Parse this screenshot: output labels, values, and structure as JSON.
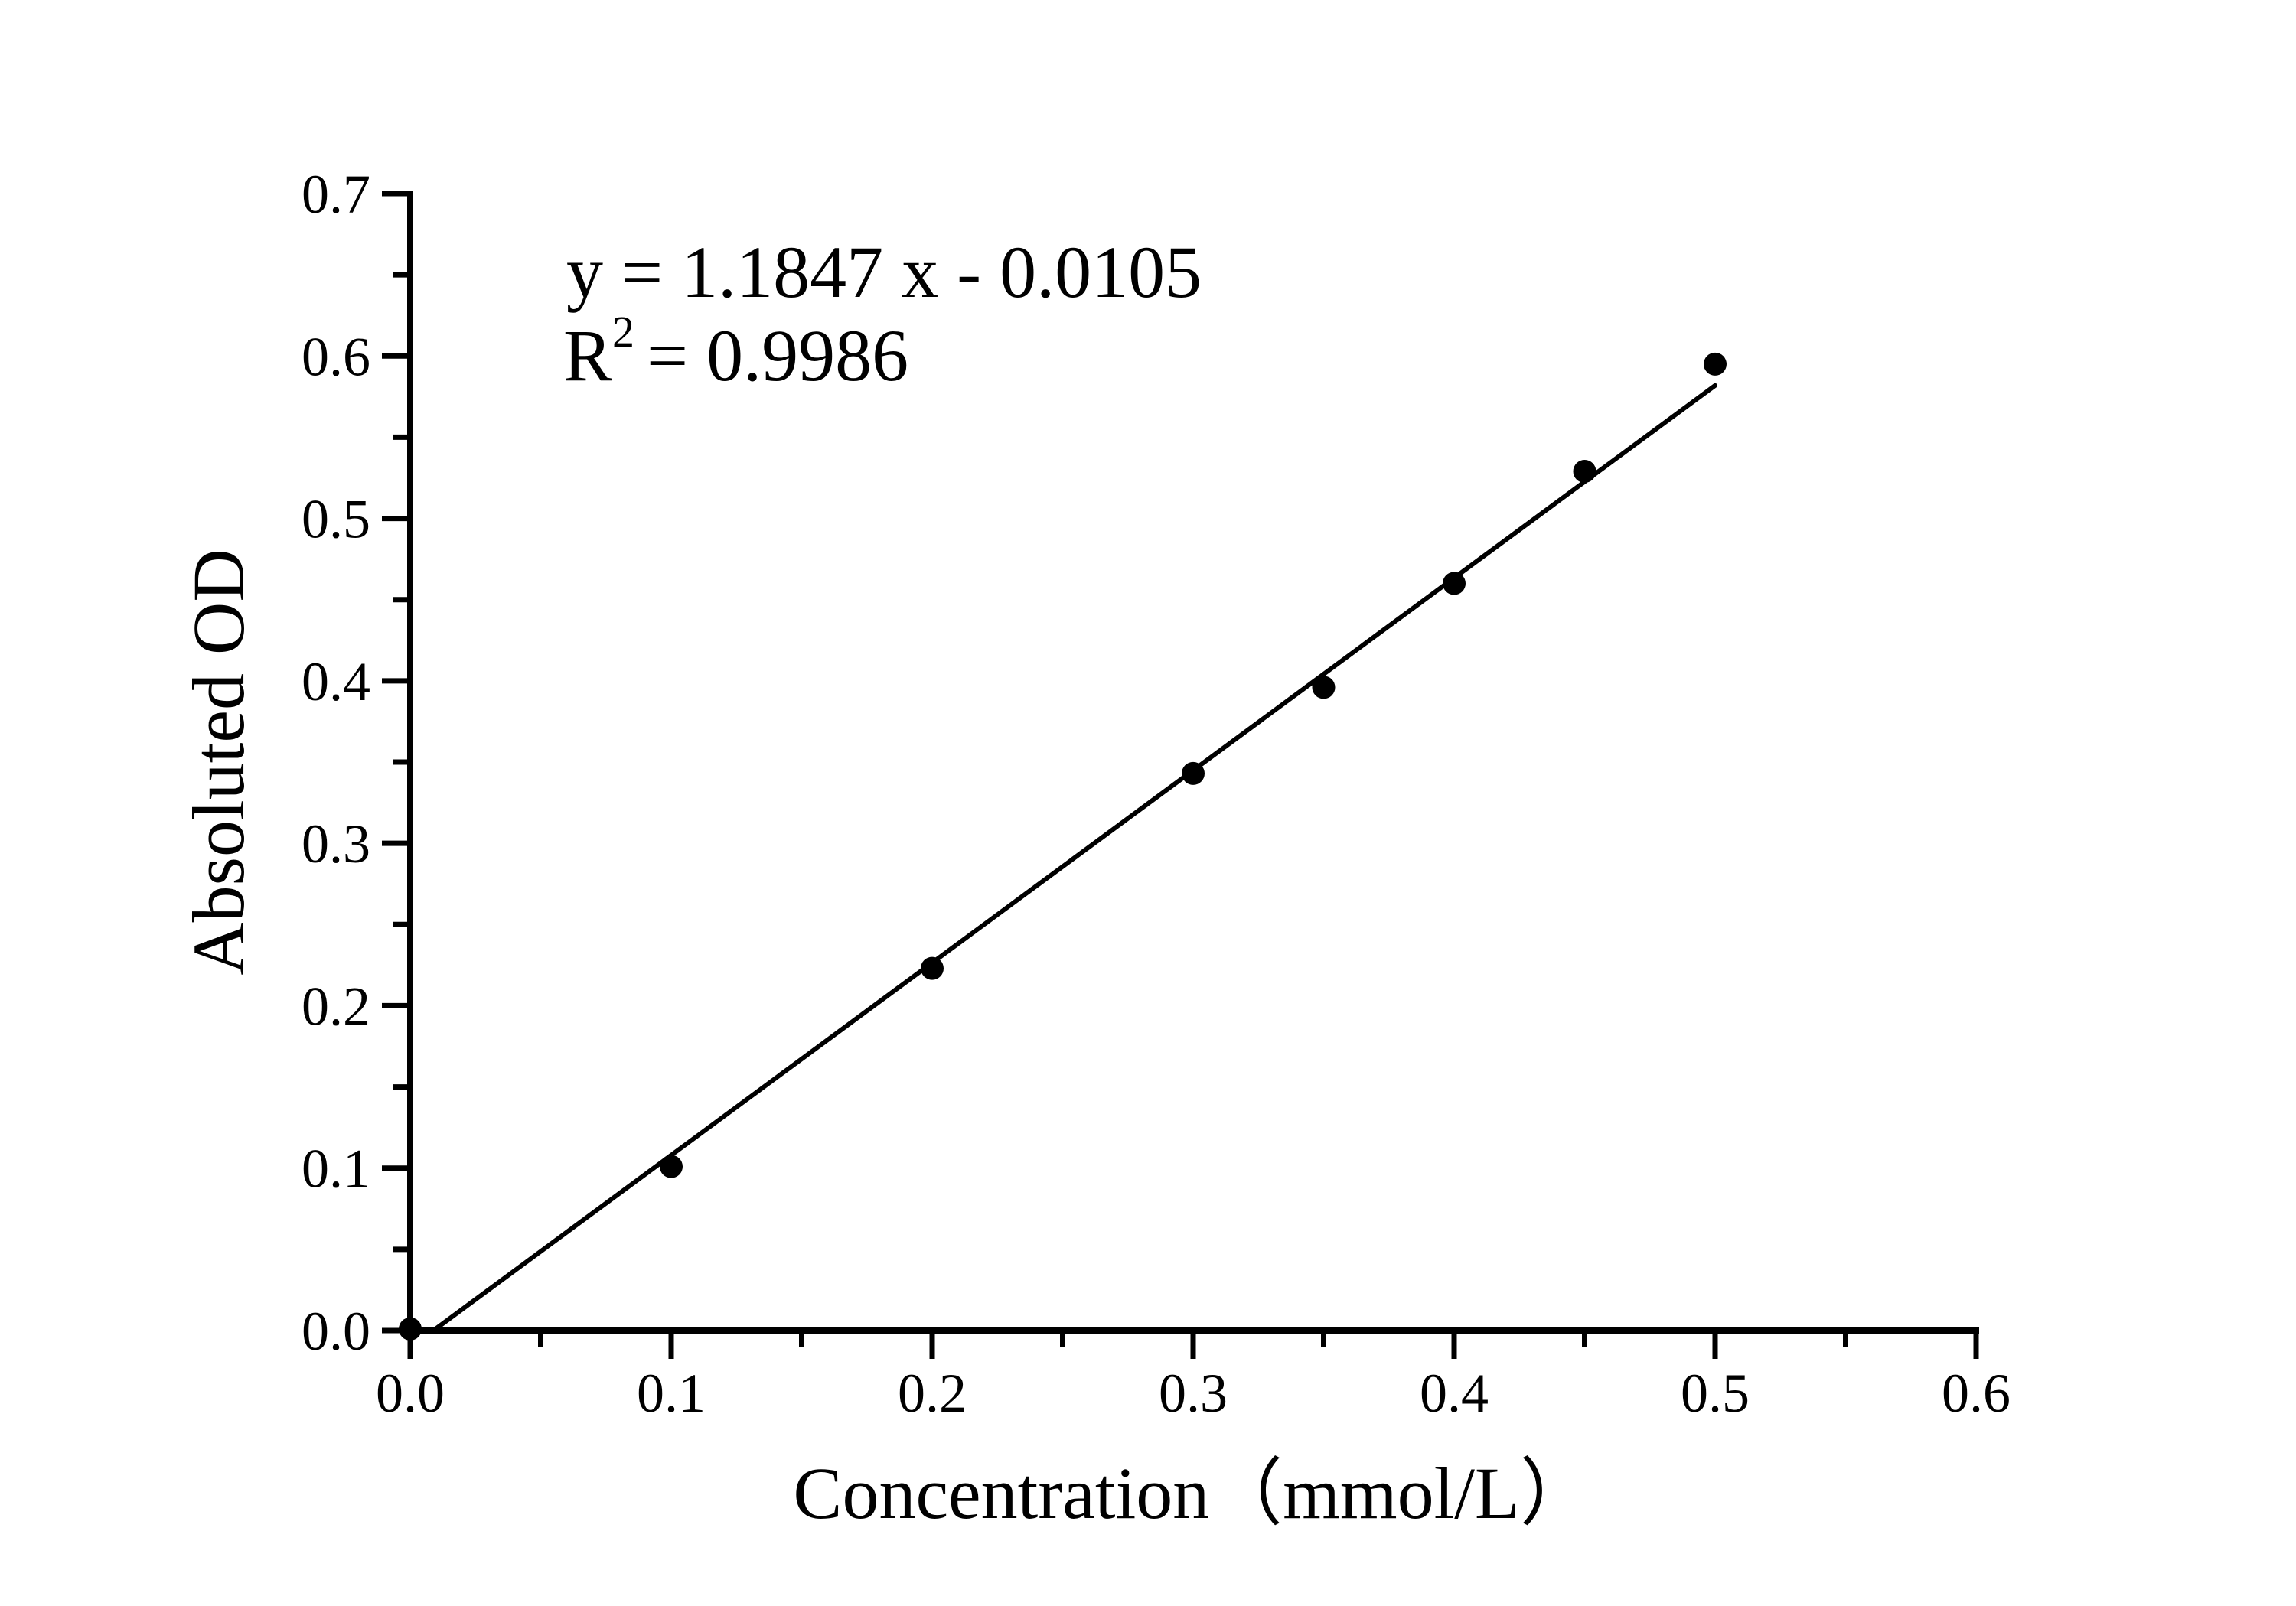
{
  "figure": {
    "background": "#ffffff",
    "ink_color": "#000000"
  },
  "annotation": {
    "equation_line": "y = 1.1847 x - 0.0105",
    "r_base": "R",
    "r_sup": "2",
    "r_rest": "= 0.9986"
  },
  "chart_data": {
    "type": "scatter",
    "title": "",
    "xlabel": "Concentration（mmol/L）",
    "ylabel": "Absoluted OD",
    "xlim": [
      0.0,
      0.6
    ],
    "ylim": [
      0.0,
      0.7
    ],
    "grid": false,
    "legend_position": "none",
    "x_major_ticks": [
      0.0,
      0.1,
      0.2,
      0.3,
      0.4,
      0.5,
      0.6
    ],
    "x_tick_labels": [
      "0.0",
      "0.1",
      "0.2",
      "0.3",
      "0.4",
      "0.5",
      "0.6"
    ],
    "x_minor_ticks": [
      0.05,
      0.15,
      0.25,
      0.35,
      0.45,
      0.55
    ],
    "y_major_ticks": [
      0.0,
      0.1,
      0.2,
      0.3,
      0.4,
      0.5,
      0.6,
      0.7
    ],
    "y_tick_labels": [
      "0.0",
      "0.1",
      "0.2",
      "0.3",
      "0.4",
      "0.5",
      "0.6",
      "0.7"
    ],
    "y_minor_ticks": [
      0.05,
      0.15,
      0.25,
      0.35,
      0.45,
      0.55,
      0.65
    ],
    "points": [
      [
        0.0,
        0.001
      ],
      [
        0.1,
        0.101
      ],
      [
        0.2,
        0.223
      ],
      [
        0.3,
        0.343
      ],
      [
        0.35,
        0.396
      ],
      [
        0.4,
        0.46
      ],
      [
        0.45,
        0.529
      ],
      [
        0.5,
        0.595
      ]
    ],
    "fit_line": {
      "slope": 1.1847,
      "intercept": -0.0105,
      "r_squared": 0.9986,
      "x_start": 0.0089,
      "x_end": 0.5,
      "equation_label": "y = 1.1847 x - 0.0105",
      "r_squared_label": "R2 = 0.9986"
    }
  }
}
